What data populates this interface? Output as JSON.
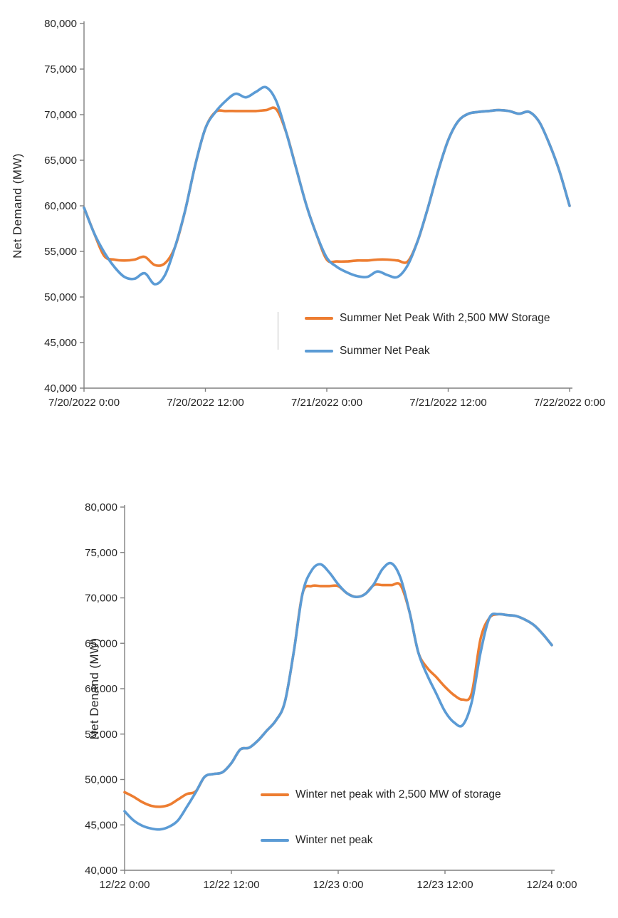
{
  "page": {
    "background": "#ffffff"
  },
  "chart_data": [
    {
      "type": "line",
      "title": "",
      "ylabel": "Net Demand (MW)",
      "xlabel": "",
      "ylim": [
        40000,
        80000
      ],
      "xlim": [
        0,
        48
      ],
      "grid": false,
      "legend_position": "inside lower right",
      "axis_color": "#808080",
      "y_ticks": [
        {
          "value": 40000,
          "label": "40,000"
        },
        {
          "value": 45000,
          "label": "45,000"
        },
        {
          "value": 50000,
          "label": "50,000"
        },
        {
          "value": 55000,
          "label": "55,000"
        },
        {
          "value": 60000,
          "label": "60,000"
        },
        {
          "value": 65000,
          "label": "65,000"
        },
        {
          "value": 70000,
          "label": "70,000"
        },
        {
          "value": 75000,
          "label": "75,000"
        },
        {
          "value": 80000,
          "label": "80,000"
        }
      ],
      "x_ticks": [
        {
          "value": 0,
          "label": "7/20/2022 0:00"
        },
        {
          "value": 12,
          "label": "7/20/2022 12:00"
        },
        {
          "value": 24,
          "label": "7/21/2022 0:00"
        },
        {
          "value": 36,
          "label": "7/21/2022 12:00"
        },
        {
          "value": 48,
          "label": "7/22/2022 0:00"
        }
      ],
      "series": [
        {
          "name": "Summer Net Peak With 2,500 MW Storage",
          "color": "#ED7D31",
          "x_start": 0,
          "x_step": 1,
          "values": [
            59800,
            57000,
            54500,
            54100,
            54000,
            54100,
            54400,
            53500,
            53700,
            55500,
            59500,
            64500,
            68500,
            70300,
            70400,
            70400,
            70400,
            70400,
            70500,
            70600,
            68000,
            64000,
            60000,
            56800,
            54100,
            53900,
            53900,
            54000,
            54000,
            54100,
            54100,
            54000,
            53900,
            56200,
            59800,
            63800,
            67200,
            69300,
            70100,
            70300,
            70400,
            70500,
            70400,
            70100,
            70300,
            69200,
            66800,
            63800,
            60000
          ]
        },
        {
          "name": "Summer Net Peak",
          "color": "#5B9BD5",
          "x_start": 0,
          "x_step": 1,
          "values": [
            59800,
            57000,
            54900,
            53300,
            52200,
            52000,
            52600,
            51400,
            52400,
            55500,
            59500,
            64500,
            68500,
            70300,
            71500,
            72300,
            71900,
            72500,
            73000,
            71500,
            68000,
            64000,
            60000,
            56800,
            54300,
            53300,
            52700,
            52300,
            52200,
            52800,
            52400,
            52200,
            53500,
            56200,
            59800,
            63800,
            67200,
            69300,
            70100,
            70300,
            70400,
            70500,
            70400,
            70100,
            70300,
            69200,
            66800,
            63800,
            60000
          ]
        }
      ]
    },
    {
      "type": "line",
      "title": "",
      "ylabel": "Net Denand (MW)",
      "xlabel": "",
      "ylim": [
        40000,
        80000
      ],
      "xlim": [
        0,
        48
      ],
      "grid": false,
      "legend_position": "inside lower center",
      "axis_color": "#808080",
      "y_ticks": [
        {
          "value": 40000,
          "label": "40,000"
        },
        {
          "value": 45000,
          "label": "45,000"
        },
        {
          "value": 50000,
          "label": "50,000"
        },
        {
          "value": 55000,
          "label": "55,000"
        },
        {
          "value": 60000,
          "label": "60,000"
        },
        {
          "value": 65000,
          "label": "65,000"
        },
        {
          "value": 70000,
          "label": "70,000"
        },
        {
          "value": 75000,
          "label": "75,000"
        },
        {
          "value": 80000,
          "label": "80,000"
        }
      ],
      "x_ticks": [
        {
          "value": 0,
          "label": "12/22 0:00"
        },
        {
          "value": 12,
          "label": "12/22 12:00"
        },
        {
          "value": 24,
          "label": "12/23 0:00"
        },
        {
          "value": 36,
          "label": "12/23 12:00"
        },
        {
          "value": 48,
          "label": "12/24 0:00"
        }
      ],
      "series": [
        {
          "name": "Winter net peak with 2,500 MW of storage",
          "color": "#ED7D31",
          "x_start": 0,
          "x_step": 1,
          "values": [
            48600,
            48100,
            47500,
            47100,
            47000,
            47200,
            47800,
            48400,
            48700,
            50300,
            50600,
            50800,
            51800,
            53300,
            53500,
            54300,
            55400,
            56500,
            58500,
            64000,
            70500,
            71300,
            71300,
            71300,
            71300,
            70500,
            70100,
            70400,
            71400,
            71400,
            71400,
            71400,
            68500,
            64000,
            62300,
            61300,
            60200,
            59300,
            58800,
            59500,
            65500,
            67800,
            68200,
            68100,
            68000,
            67600,
            67000,
            66000,
            64800
          ]
        },
        {
          "name": "Winter net peak",
          "color": "#5B9BD5",
          "x_start": 0,
          "x_step": 1,
          "values": [
            46500,
            45500,
            44900,
            44600,
            44500,
            44800,
            45500,
            47000,
            48600,
            50300,
            50600,
            50800,
            51800,
            53300,
            53500,
            54300,
            55400,
            56500,
            58500,
            64000,
            70500,
            73000,
            73700,
            72800,
            71500,
            70500,
            70100,
            70400,
            71500,
            73200,
            73800,
            72200,
            68500,
            64000,
            61500,
            59500,
            57500,
            56300,
            56000,
            58500,
            64000,
            67800,
            68200,
            68100,
            68000,
            67600,
            67000,
            66000,
            64800
          ]
        }
      ]
    }
  ]
}
